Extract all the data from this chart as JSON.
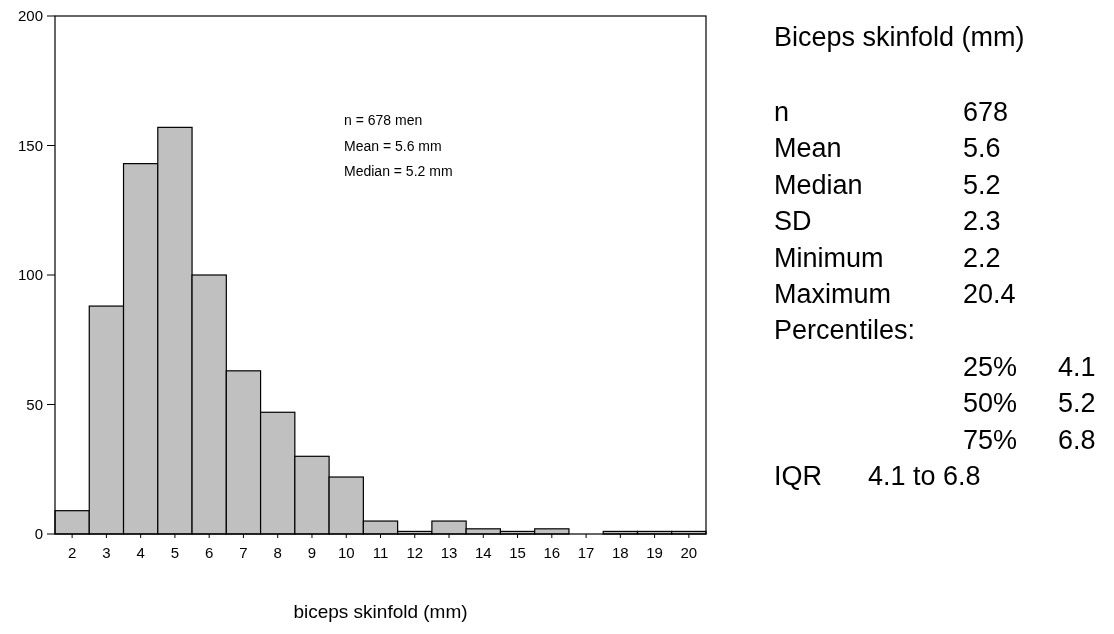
{
  "chart_data": [
    {
      "type": "histogram",
      "xlabel": "biceps skinfold (mm)",
      "color": "#c0c0c0",
      "bins": [
        1.5,
        2.5,
        3.5,
        4.5,
        5.5,
        6.5,
        7.5,
        8.5,
        9.5,
        10.5,
        11.5,
        12.5,
        13.5,
        14.5,
        15.5,
        16.5,
        17.5,
        18.5,
        19.5,
        20.5
      ],
      "values": [
        9,
        88,
        143,
        157,
        100,
        63,
        47,
        30,
        22,
        5,
        1,
        5,
        2,
        1,
        2,
        0,
        1,
        1,
        1
      ],
      "xlim": [
        1.5,
        20.5
      ],
      "xticks": [
        2,
        3,
        4,
        5,
        6,
        7,
        8,
        9,
        10,
        11,
        12,
        13,
        14,
        15,
        16,
        17,
        18,
        19,
        20
      ],
      "ylim": [
        0,
        200
      ],
      "yticks": [
        0,
        50,
        100,
        150,
        200
      ],
      "annotations": [
        "n = 678 men",
        "Mean = 5.6 mm",
        "Median = 5.2 mm"
      ]
    },
    {
      "type": "other",
      "title": "Biceps skinfold (mm)",
      "annotations": [
        "n\t\t678",
        "Mean\t\t5.6",
        "Median\t\t5.2",
        "SD\t\t2.3",
        "Minimum\t\t2.2",
        "Maximum\t\t20.4",
        "Percentiles:",
        "\t\t25%\t4.1",
        "\t\t50%\t5.2",
        "\t\t75%\t6.8",
        "IQR\t4.1 to 6.8"
      ]
    }
  ]
}
